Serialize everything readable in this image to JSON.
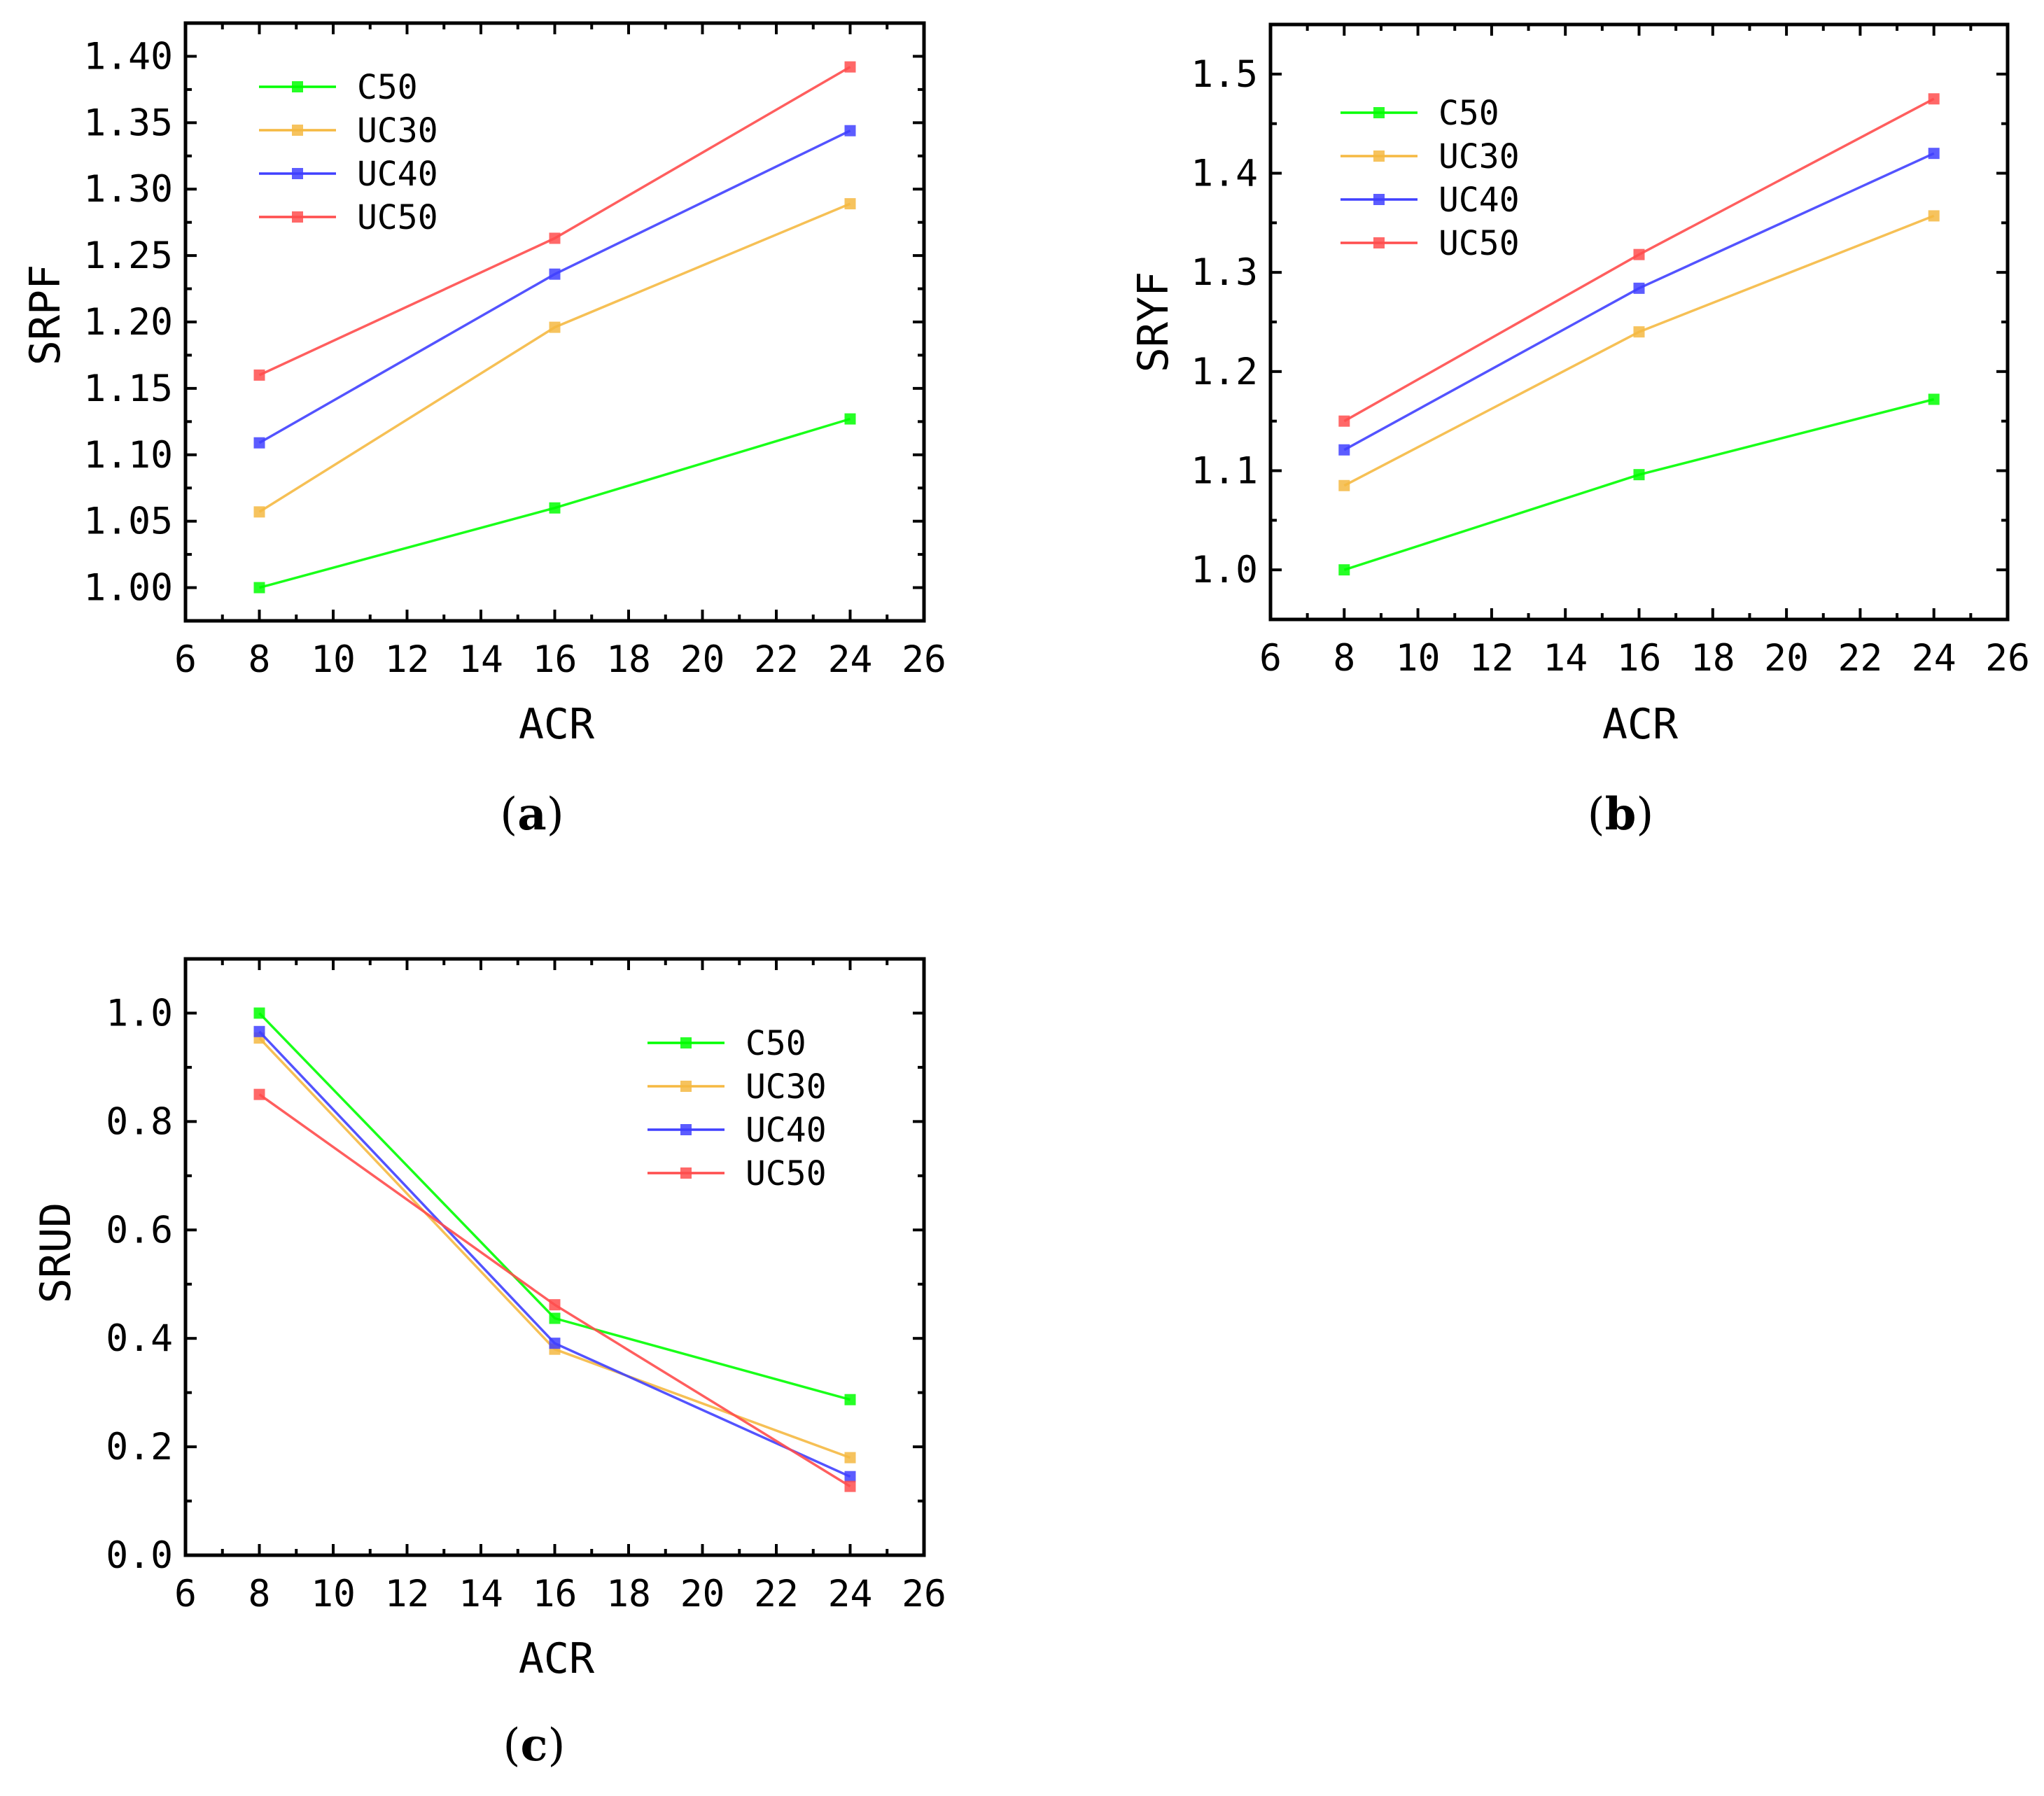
{
  "chart_data": [
    {
      "panel": "a",
      "panel_label": "(a)",
      "type": "line",
      "xlabel": "ACR",
      "ylabel": "SRPF",
      "xlim": [
        6,
        26
      ],
      "ylim": [
        0.975,
        1.425
      ],
      "xticks": [
        "6",
        "8",
        "10",
        "12",
        "14",
        "16",
        "18",
        "20",
        "22",
        "24",
        "26"
      ],
      "yticks": [
        "1.00",
        "1.05",
        "1.10",
        "1.15",
        "1.20",
        "1.25",
        "1.30",
        "1.35",
        "1.40"
      ],
      "x": [
        8,
        16,
        24
      ],
      "legend_position": "top-left",
      "series": [
        {
          "name": "C50",
          "color": "#00ff00",
          "values": [
            1.0,
            1.06,
            1.127
          ]
        },
        {
          "name": "UC30",
          "color": "#f5b942",
          "values": [
            1.057,
            1.196,
            1.289
          ]
        },
        {
          "name": "UC40",
          "color": "#4040ff",
          "values": [
            1.109,
            1.236,
            1.344
          ]
        },
        {
          "name": "UC50",
          "color": "#ff4d4d",
          "values": [
            1.16,
            1.263,
            1.392
          ]
        }
      ]
    },
    {
      "panel": "b",
      "panel_label": "(b)",
      "type": "line",
      "xlabel": "ACR",
      "ylabel": "SRYF",
      "xlim": [
        6,
        26
      ],
      "ylim": [
        0.95,
        1.55
      ],
      "xticks": [
        "6",
        "8",
        "10",
        "12",
        "14",
        "16",
        "18",
        "20",
        "22",
        "24",
        "26"
      ],
      "yticks": [
        "1.0",
        "1.1",
        "1.2",
        "1.3",
        "1.4",
        "1.5"
      ],
      "x": [
        8,
        16,
        24
      ],
      "legend_position": "top-left",
      "series": [
        {
          "name": "C50",
          "color": "#00ff00",
          "values": [
            1.0,
            1.096,
            1.172
          ]
        },
        {
          "name": "UC30",
          "color": "#f5b942",
          "values": [
            1.085,
            1.24,
            1.357
          ]
        },
        {
          "name": "UC40",
          "color": "#4040ff",
          "values": [
            1.121,
            1.284,
            1.42
          ]
        },
        {
          "name": "UC50",
          "color": "#ff4d4d",
          "values": [
            1.15,
            1.318,
            1.475
          ]
        }
      ]
    },
    {
      "panel": "c",
      "panel_label": "(c)",
      "type": "line",
      "xlabel": "ACR",
      "ylabel": "SRUD",
      "xlim": [
        6,
        26
      ],
      "ylim": [
        0.0,
        1.1
      ],
      "xticks": [
        "6",
        "8",
        "10",
        "12",
        "14",
        "16",
        "18",
        "20",
        "22",
        "24",
        "26"
      ],
      "yticks": [
        "0.0",
        "0.2",
        "0.4",
        "0.6",
        "0.8",
        "1.0"
      ],
      "x": [
        8,
        16,
        24
      ],
      "legend_position": "top-right",
      "series": [
        {
          "name": "C50",
          "color": "#00ff00",
          "values": [
            1.0,
            0.437,
            0.287
          ]
        },
        {
          "name": "UC30",
          "color": "#f5b942",
          "values": [
            0.954,
            0.38,
            0.18
          ]
        },
        {
          "name": "UC40",
          "color": "#4040ff",
          "values": [
            0.966,
            0.391,
            0.145
          ]
        },
        {
          "name": "UC50",
          "color": "#ff4d4d",
          "values": [
            0.85,
            0.462,
            0.127
          ]
        }
      ]
    }
  ]
}
